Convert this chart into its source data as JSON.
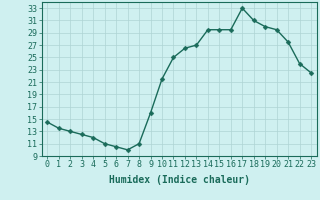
{
  "x": [
    0,
    1,
    2,
    3,
    4,
    5,
    6,
    7,
    8,
    9,
    10,
    11,
    12,
    13,
    14,
    15,
    16,
    17,
    18,
    19,
    20,
    21,
    22,
    23
  ],
  "y": [
    14.5,
    13.5,
    13.0,
    12.5,
    12.0,
    11.0,
    10.5,
    10.0,
    11.0,
    16.0,
    21.5,
    25.0,
    26.5,
    27.0,
    29.5,
    29.5,
    29.5,
    33.0,
    31.0,
    30.0,
    29.5,
    27.5,
    24.0,
    22.5
  ],
  "xlabel": "Humidex (Indice chaleur)",
  "xlim": [
    -0.5,
    23.5
  ],
  "ylim": [
    9,
    34
  ],
  "yticks": [
    9,
    11,
    13,
    15,
    17,
    19,
    21,
    23,
    25,
    27,
    29,
    31,
    33
  ],
  "xticks": [
    0,
    1,
    2,
    3,
    4,
    5,
    6,
    7,
    8,
    9,
    10,
    11,
    12,
    13,
    14,
    15,
    16,
    17,
    18,
    19,
    20,
    21,
    22,
    23
  ],
  "xtick_labels": [
    "0",
    "1",
    "2",
    "3",
    "4",
    "5",
    "6",
    "7",
    "8",
    "9",
    "10",
    "11",
    "12",
    "13",
    "14",
    "15",
    "16",
    "17",
    "18",
    "19",
    "20",
    "21",
    "22",
    "23"
  ],
  "line_color": "#1a6b5a",
  "marker_color": "#1a6b5a",
  "bg_color": "#cff0f0",
  "grid_color": "#aed4d4",
  "axes_color": "#1a6b5a",
  "xlabel_fontsize": 7,
  "tick_fontsize": 6,
  "marker_size": 2.5,
  "line_width": 1.0
}
